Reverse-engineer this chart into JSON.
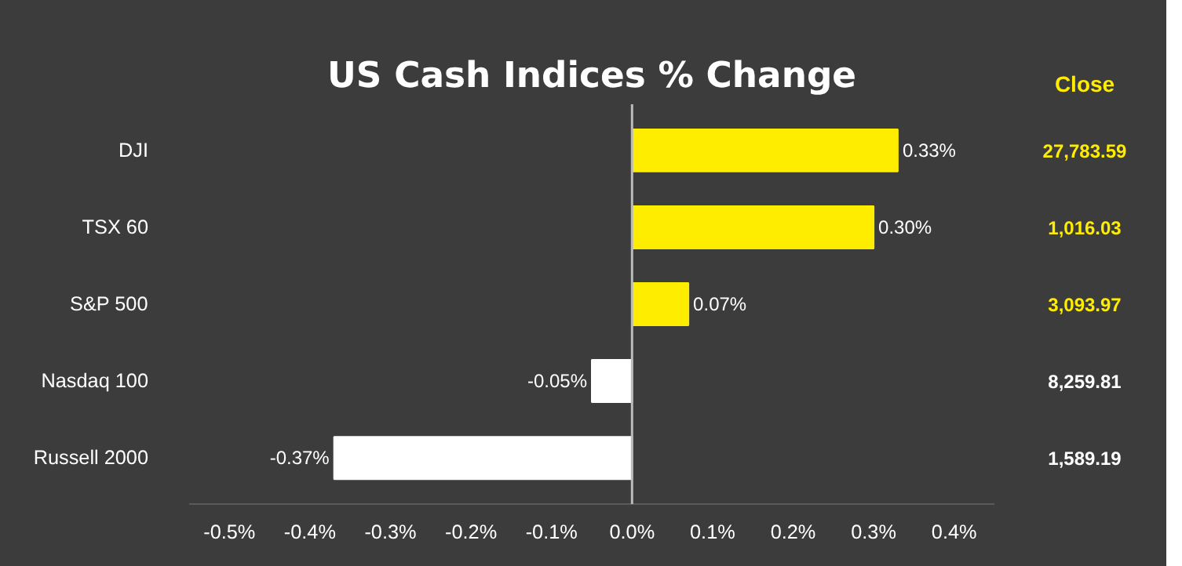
{
  "chart_data": {
    "type": "bar",
    "orientation": "horizontal",
    "title": "US Cash Indices % Change",
    "categories": [
      "DJI",
      "TSX 60",
      "S&P 500",
      "Nasdaq 100",
      "Russell 2000"
    ],
    "values": [
      0.33,
      0.3,
      0.07,
      -0.05,
      -0.37
    ],
    "colors": [
      "#ffed00",
      "#ffed00",
      "#ffed00",
      "#ffffff",
      "#ffffff"
    ],
    "value_labels": [
      "0.33%",
      "0.30%",
      "0.07%",
      "-0.05%",
      "-0.37%"
    ],
    "xlim": [
      -0.55,
      0.45
    ],
    "xticks": [
      {
        "value": -0.5,
        "label": "-0.5%"
      },
      {
        "value": -0.4,
        "label": "-0.4%"
      },
      {
        "value": -0.3,
        "label": "-0.3%"
      },
      {
        "value": -0.2,
        "label": "-0.2%"
      },
      {
        "value": -0.1,
        "label": "-0.1%"
      },
      {
        "value": 0,
        "label": "0.0%"
      },
      {
        "value": 0.1,
        "label": "0.1%"
      },
      {
        "value": 0.2,
        "label": "0.2%"
      },
      {
        "value": 0.3,
        "label": "0.3%"
      },
      {
        "value": 0.4,
        "label": "0.4%"
      }
    ],
    "grid": false,
    "legend": false,
    "ref_lines": [
      {
        "axis": "x",
        "value": 0,
        "color": "#bbbbbb"
      }
    ],
    "annotations": [
      "Close",
      "27,783.59",
      "1,016.03",
      "3,093.97",
      "8,259.81",
      "1,589.19"
    ]
  }
}
